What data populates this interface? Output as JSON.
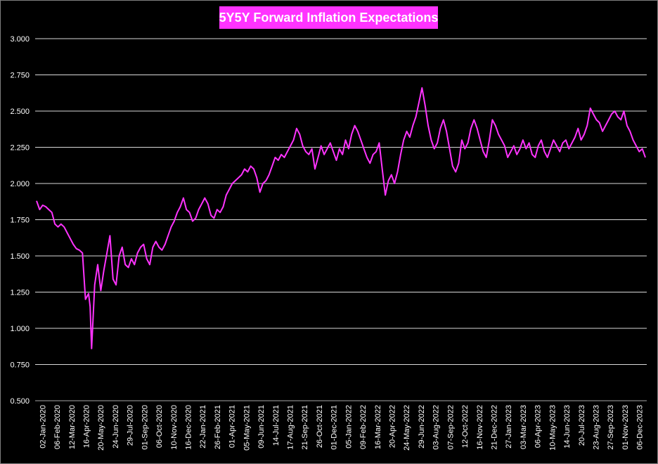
{
  "chart_data": {
    "type": "line",
    "title": "5Y5Y Forward Inflation Expectations",
    "xlabel": "",
    "ylabel": "",
    "ylim": [
      0.5,
      3.0
    ],
    "yticks": [
      "0.500",
      "0.750",
      "1.000",
      "1.250",
      "1.500",
      "1.750",
      "2.000",
      "2.250",
      "2.500",
      "2.750",
      "3.000"
    ],
    "grid": true,
    "legend": "none",
    "line_color": "#ff33ff",
    "background": "#000000",
    "xtick_labels": [
      "02-Jan-2020",
      "06-Feb-2020",
      "12-Mar-2020",
      "16-Apr-2020",
      "20-May-2020",
      "24-Jun-2020",
      "29-Jul-2020",
      "01-Sep-2020",
      "06-Oct-2020",
      "10-Nov-2020",
      "16-Dec-2020",
      "22-Jan-2021",
      "26-Feb-2021",
      "01-Apr-2021",
      "05-May-2021",
      "09-Jun-2021",
      "14-Jul-2021",
      "17-Aug-2021",
      "21-Sep-2021",
      "26-Oct-2021",
      "01-Dec-2021",
      "05-Jan-2022",
      "09-Feb-2022",
      "16-Mar-2022",
      "20-Apr-2022",
      "24-May-2022",
      "29-Jun-2022",
      "03-Aug-2022",
      "07-Sep-2022",
      "12-Oct-2022",
      "16-Nov-2022",
      "21-Dec-2022",
      "27-Jan-2023",
      "03-Mar-2023",
      "06-Apr-2023",
      "10-May-2023",
      "14-Jun-2023",
      "20-Jul-2023",
      "23-Aug-2023",
      "27-Sep-2023",
      "01-Nov-2023",
      "06-Dec-2023"
    ],
    "series": [
      {
        "values": [
          [
            0,
            1.88
          ],
          [
            1,
            1.82
          ],
          [
            2,
            1.85
          ],
          [
            3,
            1.84
          ],
          [
            4,
            1.82
          ],
          [
            5,
            1.8
          ],
          [
            6,
            1.72
          ],
          [
            7,
            1.7
          ],
          [
            8,
            1.72
          ],
          [
            9,
            1.7
          ],
          [
            10,
            1.66
          ],
          [
            11,
            1.62
          ],
          [
            12,
            1.58
          ],
          [
            13,
            1.55
          ],
          [
            14,
            1.54
          ],
          [
            15,
            1.52
          ],
          [
            16,
            1.2
          ],
          [
            17,
            1.24
          ],
          [
            17.5,
            1.15
          ],
          [
            18,
            0.86
          ],
          [
            19,
            1.3
          ],
          [
            20,
            1.44
          ],
          [
            21,
            1.26
          ],
          [
            22,
            1.4
          ],
          [
            23,
            1.52
          ],
          [
            24,
            1.64
          ],
          [
            25,
            1.34
          ],
          [
            26,
            1.3
          ],
          [
            27,
            1.5
          ],
          [
            28,
            1.56
          ],
          [
            29,
            1.44
          ],
          [
            30,
            1.42
          ],
          [
            31,
            1.48
          ],
          [
            32,
            1.44
          ],
          [
            33,
            1.52
          ],
          [
            34,
            1.56
          ],
          [
            35,
            1.58
          ],
          [
            36,
            1.48
          ],
          [
            37,
            1.44
          ],
          [
            38,
            1.56
          ],
          [
            39,
            1.6
          ],
          [
            40,
            1.56
          ],
          [
            41,
            1.54
          ],
          [
            42,
            1.58
          ],
          [
            43,
            1.64
          ],
          [
            44,
            1.7
          ],
          [
            45,
            1.74
          ],
          [
            46,
            1.8
          ],
          [
            47,
            1.84
          ],
          [
            48,
            1.9
          ],
          [
            49,
            1.82
          ],
          [
            50,
            1.8
          ],
          [
            51,
            1.74
          ],
          [
            52,
            1.76
          ],
          [
            53,
            1.82
          ],
          [
            54,
            1.86
          ],
          [
            55,
            1.9
          ],
          [
            56,
            1.86
          ],
          [
            57,
            1.78
          ],
          [
            58,
            1.76
          ],
          [
            59,
            1.82
          ],
          [
            60,
            1.8
          ],
          [
            61,
            1.84
          ],
          [
            62,
            1.92
          ],
          [
            63,
            1.96
          ],
          [
            64,
            2.0
          ],
          [
            65,
            2.02
          ],
          [
            66,
            2.04
          ],
          [
            67,
            2.06
          ],
          [
            68,
            2.1
          ],
          [
            69,
            2.08
          ],
          [
            70,
            2.12
          ],
          [
            71,
            2.1
          ],
          [
            72,
            2.04
          ],
          [
            73,
            1.94
          ],
          [
            74,
            2.0
          ],
          [
            75,
            2.02
          ],
          [
            76,
            2.06
          ],
          [
            77,
            2.12
          ],
          [
            78,
            2.18
          ],
          [
            79,
            2.16
          ],
          [
            80,
            2.2
          ],
          [
            81,
            2.18
          ],
          [
            82,
            2.22
          ],
          [
            83,
            2.26
          ],
          [
            84,
            2.3
          ],
          [
            85,
            2.38
          ],
          [
            86,
            2.34
          ],
          [
            87,
            2.26
          ],
          [
            88,
            2.22
          ],
          [
            89,
            2.2
          ],
          [
            90,
            2.24
          ],
          [
            91,
            2.1
          ],
          [
            92,
            2.18
          ],
          [
            93,
            2.26
          ],
          [
            94,
            2.2
          ],
          [
            95,
            2.24
          ],
          [
            96,
            2.28
          ],
          [
            97,
            2.22
          ],
          [
            98,
            2.16
          ],
          [
            99,
            2.24
          ],
          [
            100,
            2.2
          ],
          [
            101,
            2.3
          ],
          [
            102,
            2.24
          ],
          [
            103,
            2.34
          ],
          [
            104,
            2.4
          ],
          [
            105,
            2.36
          ],
          [
            106,
            2.3
          ],
          [
            107,
            2.24
          ],
          [
            108,
            2.18
          ],
          [
            109,
            2.14
          ],
          [
            110,
            2.2
          ],
          [
            111,
            2.22
          ],
          [
            112,
            2.28
          ],
          [
            113,
            2.1
          ],
          [
            114,
            1.92
          ],
          [
            115,
            2.02
          ],
          [
            116,
            2.06
          ],
          [
            117,
            2.0
          ],
          [
            118,
            2.08
          ],
          [
            119,
            2.2
          ],
          [
            120,
            2.3
          ],
          [
            121,
            2.36
          ],
          [
            122,
            2.32
          ],
          [
            123,
            2.4
          ],
          [
            124,
            2.46
          ],
          [
            125,
            2.56
          ],
          [
            126,
            2.66
          ],
          [
            127,
            2.54
          ],
          [
            128,
            2.4
          ],
          [
            129,
            2.3
          ],
          [
            130,
            2.24
          ],
          [
            131,
            2.28
          ],
          [
            132,
            2.38
          ],
          [
            133,
            2.44
          ],
          [
            134,
            2.36
          ],
          [
            135,
            2.24
          ],
          [
            136,
            2.12
          ],
          [
            137,
            2.08
          ],
          [
            138,
            2.14
          ],
          [
            139,
            2.3
          ],
          [
            140,
            2.24
          ],
          [
            141,
            2.28
          ],
          [
            142,
            2.38
          ],
          [
            143,
            2.44
          ],
          [
            144,
            2.38
          ],
          [
            145,
            2.3
          ],
          [
            146,
            2.22
          ],
          [
            147,
            2.18
          ],
          [
            148,
            2.3
          ],
          [
            149,
            2.44
          ],
          [
            150,
            2.4
          ],
          [
            151,
            2.34
          ],
          [
            152,
            2.3
          ],
          [
            153,
            2.26
          ],
          [
            154,
            2.18
          ],
          [
            155,
            2.22
          ],
          [
            156,
            2.26
          ],
          [
            157,
            2.2
          ],
          [
            158,
            2.24
          ],
          [
            159,
            2.3
          ],
          [
            160,
            2.24
          ],
          [
            161,
            2.28
          ],
          [
            162,
            2.2
          ],
          [
            163,
            2.18
          ],
          [
            164,
            2.26
          ],
          [
            165,
            2.3
          ],
          [
            166,
            2.22
          ],
          [
            167,
            2.18
          ],
          [
            168,
            2.24
          ],
          [
            169,
            2.3
          ],
          [
            170,
            2.26
          ],
          [
            171,
            2.22
          ],
          [
            172,
            2.28
          ],
          [
            173,
            2.3
          ],
          [
            174,
            2.24
          ],
          [
            175,
            2.28
          ],
          [
            176,
            2.32
          ],
          [
            177,
            2.38
          ],
          [
            178,
            2.3
          ],
          [
            179,
            2.34
          ],
          [
            180,
            2.4
          ],
          [
            181,
            2.52
          ],
          [
            182,
            2.48
          ],
          [
            183,
            2.44
          ],
          [
            184,
            2.42
          ],
          [
            185,
            2.36
          ],
          [
            186,
            2.4
          ],
          [
            187,
            2.44
          ],
          [
            188,
            2.48
          ],
          [
            189,
            2.5
          ],
          [
            190,
            2.46
          ],
          [
            191,
            2.44
          ],
          [
            192,
            2.5
          ],
          [
            193,
            2.4
          ],
          [
            194,
            2.36
          ],
          [
            195,
            2.3
          ],
          [
            196,
            2.26
          ],
          [
            197,
            2.22
          ],
          [
            198,
            2.24
          ],
          [
            199,
            2.18
          ]
        ]
      }
    ]
  }
}
